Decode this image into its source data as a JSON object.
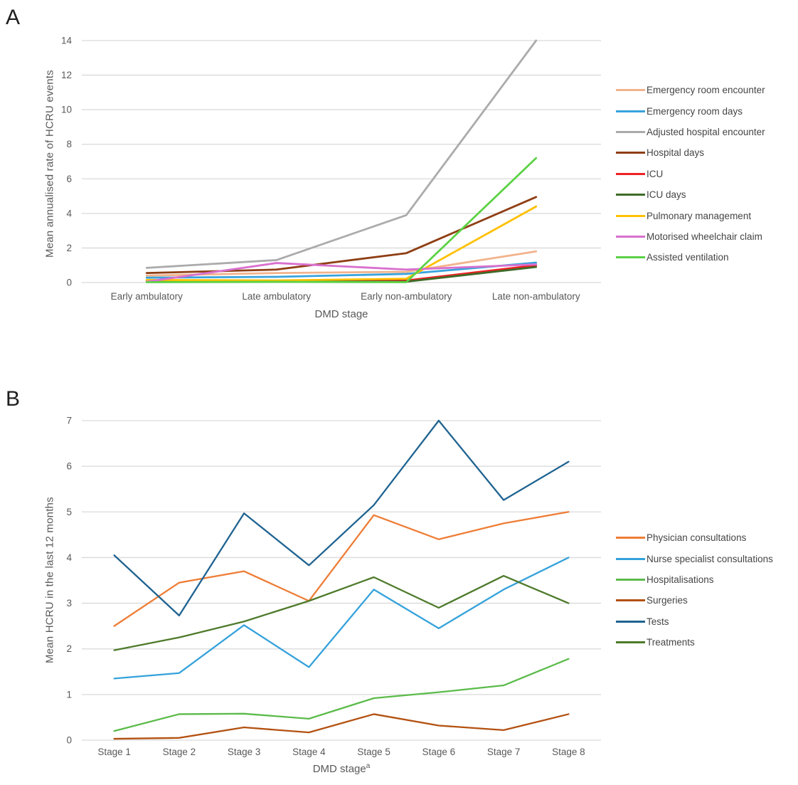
{
  "panels": [
    {
      "label": "A"
    },
    {
      "label": "B"
    }
  ],
  "chart_data": [
    {
      "type": "line",
      "title": "",
      "categories": [
        "Early ambulatory",
        "Late ambulatory",
        "Early non-ambulatory",
        "Late non-ambulatory"
      ],
      "series": [
        {
          "name": "Emergency room encounter",
          "color": "#F2B38C",
          "values": [
            0.4,
            0.55,
            0.62,
            1.8
          ]
        },
        {
          "name": "Emergency room days",
          "color": "#38A3DC",
          "values": [
            0.28,
            0.33,
            0.5,
            1.15
          ]
        },
        {
          "name": "Adjusted hospital encounter",
          "color": "#ABABAB",
          "values": [
            0.85,
            1.3,
            3.9,
            14.0
          ]
        },
        {
          "name": "Hospital days",
          "color": "#8F3E14",
          "values": [
            0.55,
            0.75,
            1.7,
            4.95
          ]
        },
        {
          "name": "ICU",
          "color": "#EE2124",
          "values": [
            0.1,
            0.1,
            0.12,
            1.0
          ]
        },
        {
          "name": "ICU days",
          "color": "#3E6B28",
          "values": [
            0.05,
            0.05,
            0.05,
            0.9
          ]
        },
        {
          "name": "Pulmonary management",
          "color": "#FFC000",
          "values": [
            0.15,
            0.12,
            0.22,
            4.4
          ]
        },
        {
          "name": "Motorised wheelchair claim",
          "color": "#D970CE",
          "values": [
            0.05,
            1.13,
            0.75,
            1.05
          ]
        },
        {
          "name": "Assisted ventilation",
          "color": "#5CD245",
          "values": [
            0.02,
            0.04,
            0.02,
            7.2
          ]
        }
      ],
      "xlabel": "DMD stage",
      "xlabel_sup": "",
      "ylabel": "Mean annualised rate of HCRU events",
      "ylim": [
        0,
        14
      ],
      "yticks": [
        0,
        2,
        4,
        6,
        8,
        10,
        12,
        14
      ],
      "grid": true,
      "legend_position": "right"
    },
    {
      "type": "line",
      "title": "",
      "categories": [
        "Stage 1",
        "Stage 2",
        "Stage 3",
        "Stage 4",
        "Stage 5",
        "Stage 6",
        "Stage 7",
        "Stage 8"
      ],
      "series": [
        {
          "name": "Physician consultations",
          "color": "#EE7D36",
          "values": [
            2.5,
            3.45,
            3.7,
            3.05,
            4.93,
            4.4,
            4.75,
            5.0
          ]
        },
        {
          "name": "Nurse specialist consultations",
          "color": "#35A2DB",
          "values": [
            1.35,
            1.47,
            2.52,
            1.6,
            3.3,
            2.45,
            3.3,
            4.0
          ]
        },
        {
          "name": "Hospitalisations",
          "color": "#5BBB4A",
          "values": [
            0.2,
            0.57,
            0.58,
            0.47,
            0.92,
            1.05,
            1.2,
            1.78
          ]
        },
        {
          "name": "Surgeries",
          "color": "#B35111",
          "values": [
            0.03,
            0.05,
            0.28,
            0.17,
            0.57,
            0.32,
            0.22,
            0.57
          ]
        },
        {
          "name": "Tests",
          "color": "#1F6391",
          "values": [
            4.05,
            2.73,
            4.97,
            3.83,
            5.15,
            7.0,
            5.26,
            6.1
          ]
        },
        {
          "name": "Treatments",
          "color": "#4E7A2B",
          "values": [
            1.97,
            2.25,
            2.6,
            3.05,
            3.57,
            2.9,
            3.6,
            3.0
          ]
        }
      ],
      "xlabel": "DMD stage",
      "xlabel_sup": "a",
      "ylabel": "Mean HCRU in the last 12 months",
      "ylim": [
        0,
        7
      ],
      "yticks": [
        0,
        1,
        2,
        3,
        4,
        5,
        6,
        7
      ],
      "grid": true,
      "legend_position": "right"
    }
  ]
}
